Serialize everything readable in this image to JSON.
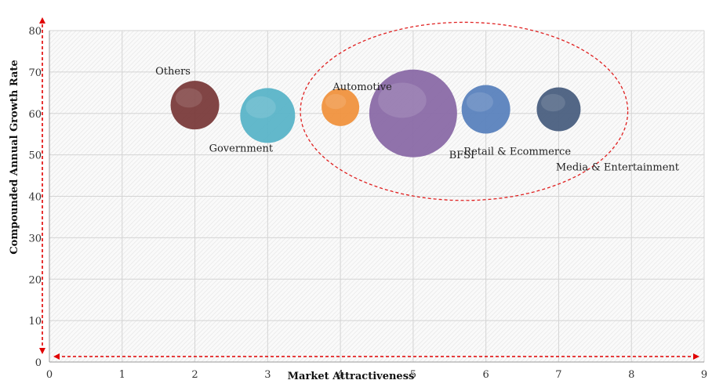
{
  "chart_data": {
    "type": "scatter",
    "title": "",
    "xlabel": "Market Attractiveness",
    "ylabel": "Compounded Annual Growth Rate",
    "xlim": [
      0,
      9
    ],
    "ylim": [
      0,
      80
    ],
    "x_ticks": [
      "0",
      "1",
      "2",
      "3",
      "4",
      "5",
      "6",
      "7",
      "8",
      "9"
    ],
    "y_ticks": [
      "0",
      "10",
      "20",
      "30",
      "40",
      "50",
      "60",
      "70",
      "80"
    ],
    "grid": true,
    "legend": "none",
    "points": [
      {
        "label": "Others",
        "x": 2,
        "y": 62,
        "size": 31,
        "color": "#7a3b3b"
      },
      {
        "label": "Government",
        "x": 3,
        "y": 59.5,
        "size": 35,
        "color": "#5ab4c8"
      },
      {
        "label": "Automotive",
        "x": 4,
        "y": 61.5,
        "size": 24,
        "color": "#f0923e"
      },
      {
        "label": "BFSI",
        "x": 5,
        "y": 60,
        "size": 56,
        "color": "#8a6aa6"
      },
      {
        "label": "Retail & Ecommerce",
        "x": 6,
        "y": 61,
        "size": 31,
        "color": "#5a82bd"
      },
      {
        "label": "Media & Entertainment",
        "x": 7,
        "y": 61,
        "size": 28,
        "color": "#4a5f80"
      }
    ],
    "highlight_ellipse": {
      "cx": 5.7,
      "cy": 60.5,
      "rx": 2.25,
      "ry": 21.5,
      "color": "#e02020"
    },
    "axis_arrow_color": "#e00000"
  }
}
